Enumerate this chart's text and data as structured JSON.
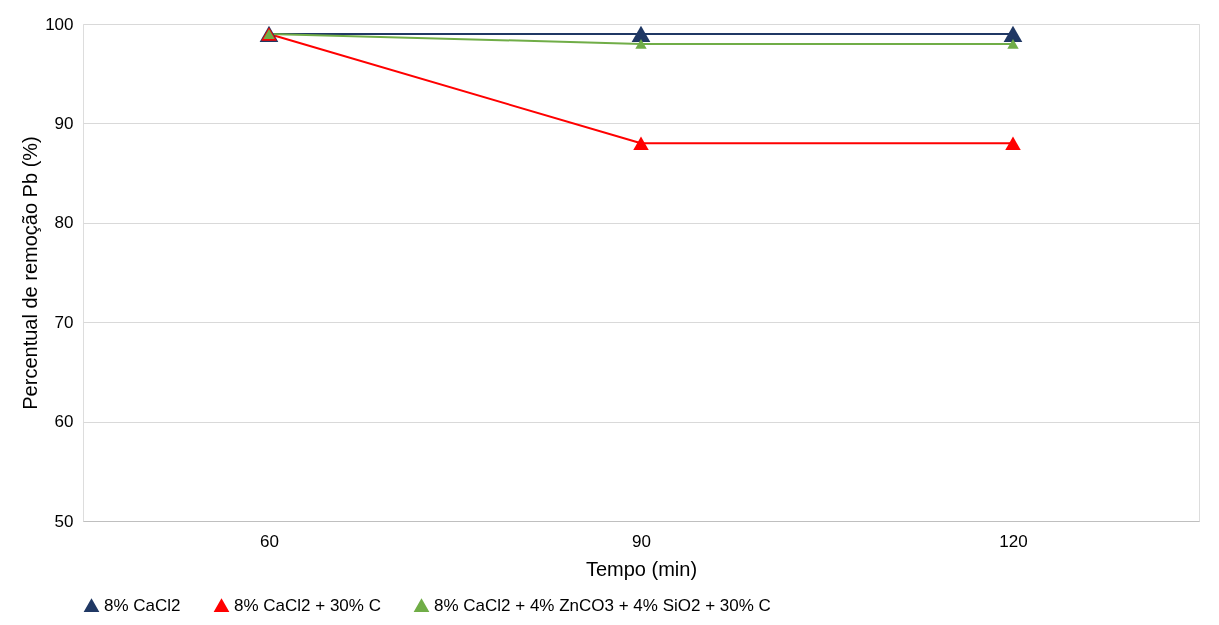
{
  "chart_data": {
    "type": "line",
    "xlabel": "Tempo (min)",
    "ylabel": "Percentual de remoção Pb (%)",
    "categories": [
      "60",
      "90",
      "120"
    ],
    "series": [
      {
        "name": "8% CaCl2",
        "color": "#203864",
        "values": [
          99,
          99,
          99
        ]
      },
      {
        "name": "8% CaCl2 + 30% C",
        "color": "#ff0000",
        "values": [
          99,
          88,
          88
        ]
      },
      {
        "name": "8% CaCl2 + 4% ZnCO3 + 4% SiO2 + 30% C",
        "color": "#70ad47",
        "values": [
          99,
          98,
          98
        ]
      }
    ],
    "ylim": [
      50,
      100
    ],
    "yticks": [
      50,
      60,
      70,
      80,
      90,
      100
    ],
    "grid": "y",
    "legend": "bottom",
    "marker": "triangle",
    "line_style": "solid"
  }
}
